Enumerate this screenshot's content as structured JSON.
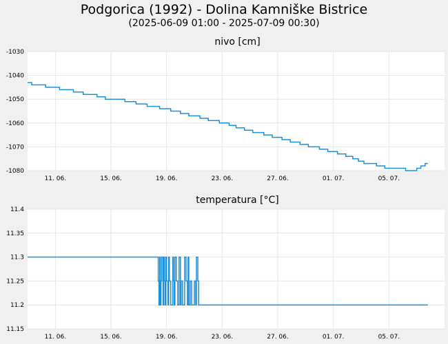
{
  "header": {
    "title": "Podgorica (1992) - Dolina Kamniške Bistrice",
    "subtitle": "(2025-06-09 01:00 - 2025-07-09 00:30)"
  },
  "colors": {
    "background": "#f0f0f0",
    "plot_background": "#ffffff",
    "grid": "#e6e6e6",
    "series": "#1e90d8"
  },
  "chart_data": [
    {
      "type": "line",
      "title": "nivo [cm]",
      "xlabel": "",
      "ylabel": "",
      "x_range_days": [
        0,
        30
      ],
      "ylim": [
        -1080,
        -1030
      ],
      "yticks": [
        -1030,
        -1040,
        -1050,
        -1060,
        -1070,
        -1080
      ],
      "ytick_labels": [
        "-1030",
        "-1040",
        "-1050",
        "-1060",
        "-1070",
        "-1080"
      ],
      "xticks_days": [
        2,
        6,
        10,
        14,
        18,
        22,
        26
      ],
      "xtick_labels": [
        "11. 06.",
        "15. 06.",
        "19. 06.",
        "23. 06.",
        "27. 06.",
        "01. 07.",
        "05. 07."
      ],
      "series": [
        {
          "name": "nivo",
          "x_days": [
            0,
            0.3,
            1.3,
            2.3,
            3.3,
            4.0,
            5.0,
            5.6,
            7.0,
            7.8,
            8.6,
            9.5,
            10.3,
            11.0,
            11.6,
            12.4,
            13.0,
            13.8,
            14.5,
            15.0,
            15.6,
            16.2,
            17.0,
            17.6,
            18.3,
            18.9,
            19.6,
            20.2,
            21.0,
            21.6,
            22.3,
            22.9,
            23.4,
            23.8,
            24.2,
            25.1,
            25.7,
            26.5,
            27.2,
            27.6,
            28.0,
            28.3,
            28.6,
            28.8
          ],
          "values": [
            -1043,
            -1044,
            -1045,
            -1046,
            -1047,
            -1048,
            -1049,
            -1050,
            -1051,
            -1052,
            -1053,
            -1054,
            -1055,
            -1056,
            -1057,
            -1058,
            -1059,
            -1060,
            -1061,
            -1062,
            -1063,
            -1064,
            -1065,
            -1066,
            -1067,
            -1068,
            -1069,
            -1070,
            -1071,
            -1072,
            -1073,
            -1074,
            -1075,
            -1076,
            -1077,
            -1078,
            -1079,
            -1079,
            -1080,
            -1080,
            -1079,
            -1078,
            -1077,
            -1077
          ]
        }
      ]
    },
    {
      "type": "line",
      "title": "temperatura [°C]",
      "xlabel": "",
      "ylabel": "",
      "x_range_days": [
        0,
        30
      ],
      "ylim": [
        11.15,
        11.4
      ],
      "yticks": [
        11.4,
        11.35,
        11.3,
        11.25,
        11.2,
        11.15
      ],
      "ytick_labels": [
        "11.4",
        "11.35",
        "11.3",
        "11.25",
        "11.2",
        "11.15"
      ],
      "xticks_days": [
        2,
        6,
        10,
        14,
        18,
        22,
        26
      ],
      "xtick_labels": [
        "11. 06.",
        "15. 06.",
        "19. 06.",
        "23. 06.",
        "27. 06.",
        "01. 07.",
        "05. 07."
      ],
      "series": [
        {
          "name": "temperatura",
          "x_days": [
            0,
            9.35,
            9.4,
            9.45,
            9.5,
            9.55,
            9.6,
            9.65,
            9.75,
            9.8,
            9.85,
            9.9,
            9.95,
            10.0,
            10.1,
            10.15,
            10.2,
            10.3,
            10.45,
            10.5,
            10.55,
            10.6,
            10.7,
            10.8,
            10.9,
            11.0,
            11.05,
            11.15,
            11.3,
            11.4,
            11.5,
            11.55,
            11.6,
            11.7,
            11.8,
            11.9,
            12.0,
            12.1,
            12.15,
            12.25,
            12.3,
            12.35,
            28.8
          ],
          "values": [
            11.3,
            11.3,
            11.25,
            11.2,
            11.3,
            11.2,
            11.25,
            11.3,
            11.2,
            11.3,
            11.25,
            11.2,
            11.3,
            11.25,
            11.2,
            11.3,
            11.25,
            11.2,
            11.3,
            11.25,
            11.2,
            11.3,
            11.25,
            11.2,
            11.3,
            11.2,
            11.25,
            11.2,
            11.3,
            11.25,
            11.2,
            11.3,
            11.2,
            11.25,
            11.2,
            11.2,
            11.25,
            11.2,
            11.3,
            11.25,
            11.2,
            11.2,
            11.2
          ]
        }
      ]
    }
  ]
}
